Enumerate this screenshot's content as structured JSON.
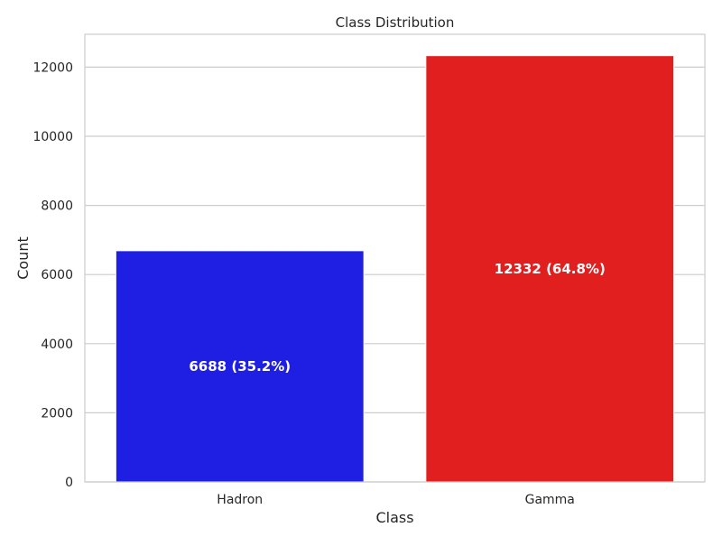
{
  "chart_data": {
    "type": "bar",
    "title": "Class Distribution",
    "xlabel": "Class",
    "ylabel": "Count",
    "categories": [
      "Hadron",
      "Gamma"
    ],
    "values": [
      6688,
      12332
    ],
    "data_labels": [
      "6688 (35.2%)",
      "12332 (64.8%)"
    ],
    "colors": [
      "#1f1fe4",
      "#e11f1f"
    ],
    "ylim": [
      0,
      12950
    ],
    "yticks": [
      0,
      2000,
      4000,
      6000,
      8000,
      10000,
      12000
    ],
    "ytick_labels": [
      "0",
      "2000",
      "4000",
      "6000",
      "8000",
      "10000",
      "12000"
    ],
    "grid": true,
    "grid_color": "#cccccc",
    "frame_color": "#cccccc"
  }
}
